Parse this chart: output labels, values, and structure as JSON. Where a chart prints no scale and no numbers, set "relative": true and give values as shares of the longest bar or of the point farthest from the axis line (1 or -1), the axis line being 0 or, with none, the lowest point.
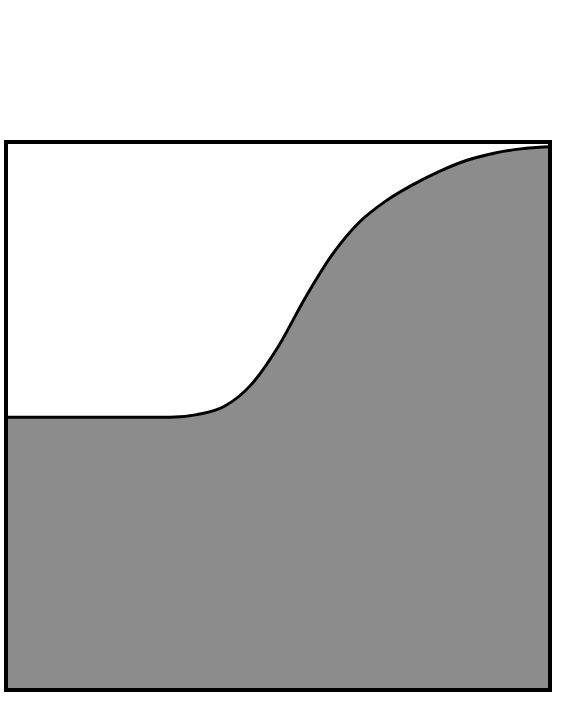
{
  "chart_data": {
    "type": "area",
    "relative": true,
    "categories": [
      null,
      null,
      null,
      null,
      null,
      null,
      null,
      null,
      null,
      null,
      null,
      null,
      null,
      null,
      null,
      null,
      null,
      null,
      null,
      null,
      null
    ],
    "values": [
      0.5,
      0.5,
      0.5,
      0.5,
      0.5,
      0.5,
      0.5,
      0.505,
      0.52,
      0.56,
      0.63,
      0.72,
      0.8,
      0.86,
      0.9,
      0.93,
      0.955,
      0.975,
      0.988,
      0.996,
      1
    ],
    "color": "#8c8c8c"
  }
}
